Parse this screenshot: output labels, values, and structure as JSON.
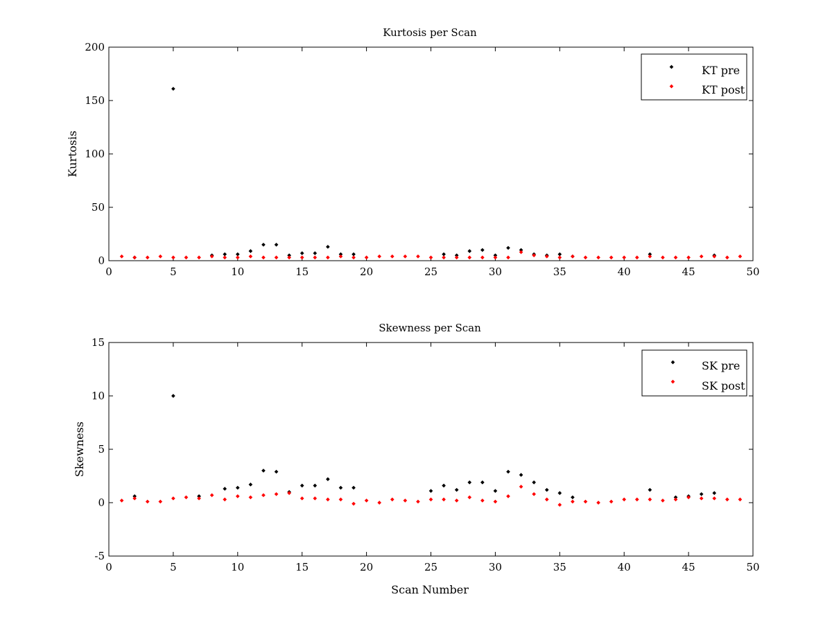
{
  "chart_data": [
    {
      "type": "scatter",
      "title": "Kurtosis per Scan",
      "xlabel": "",
      "ylabel": "Kurtosis",
      "xlim": [
        0,
        50
      ],
      "ylim": [
        0,
        200
      ],
      "xticks": [
        0,
        5,
        10,
        15,
        20,
        25,
        30,
        35,
        40,
        45,
        50
      ],
      "yticks": [
        0,
        50,
        100,
        150,
        200
      ],
      "grid": false,
      "legend": "top-right",
      "series": [
        {
          "name": "KT pre",
          "color": "#000000",
          "x": [
            2,
            5,
            8,
            9,
            10,
            11,
            12,
            13,
            14,
            15,
            16,
            17,
            18,
            19,
            26,
            27,
            28,
            29,
            30,
            31,
            32,
            33,
            34,
            35,
            36,
            42,
            47
          ],
          "y": [
            3,
            161,
            5,
            6,
            6,
            9,
            15,
            15,
            5,
            7,
            7,
            13,
            6,
            6,
            6,
            5,
            9,
            10,
            5,
            12,
            10,
            6,
            5,
            6,
            4,
            6,
            5
          ]
        },
        {
          "name": "KT post",
          "color": "#ff0000",
          "x": [
            1,
            2,
            3,
            4,
            5,
            6,
            7,
            8,
            9,
            10,
            11,
            12,
            13,
            14,
            15,
            16,
            17,
            18,
            19,
            20,
            21,
            22,
            23,
            24,
            25,
            26,
            27,
            28,
            29,
            30,
            31,
            32,
            33,
            34,
            35,
            36,
            37,
            38,
            39,
            40,
            41,
            42,
            43,
            44,
            45,
            46,
            47,
            48,
            49
          ],
          "y": [
            4,
            3,
            3,
            4,
            3,
            3,
            3,
            4,
            3,
            3,
            4,
            3,
            3,
            3,
            3,
            3,
            3,
            4,
            3,
            3,
            4,
            4,
            4,
            4,
            3,
            3,
            3,
            3,
            3,
            3,
            3,
            8,
            5,
            4,
            3,
            4,
            3,
            3,
            3,
            3,
            3,
            4,
            3,
            3,
            3,
            4,
            4,
            3,
            4
          ]
        }
      ]
    },
    {
      "type": "scatter",
      "title": "Skewness per Scan",
      "xlabel": "Scan Number",
      "ylabel": "Skewness",
      "xlim": [
        0,
        50
      ],
      "ylim": [
        -5,
        15
      ],
      "xticks": [
        0,
        5,
        10,
        15,
        20,
        25,
        30,
        35,
        40,
        45,
        50
      ],
      "yticks": [
        -5,
        0,
        5,
        10,
        15
      ],
      "grid": false,
      "legend": "top-right",
      "series": [
        {
          "name": "SK pre",
          "color": "#000000",
          "x": [
            2,
            5,
            7,
            9,
            10,
            11,
            12,
            13,
            14,
            15,
            16,
            17,
            18,
            19,
            25,
            26,
            27,
            28,
            29,
            30,
            31,
            32,
            33,
            34,
            35,
            36,
            42,
            44,
            45,
            46,
            47
          ],
          "y": [
            0.6,
            10.0,
            0.6,
            1.3,
            1.4,
            1.7,
            3.0,
            2.9,
            1.0,
            1.6,
            1.6,
            2.2,
            1.4,
            1.4,
            1.1,
            1.6,
            1.2,
            1.9,
            1.9,
            1.1,
            2.9,
            2.6,
            1.9,
            1.2,
            0.9,
            0.5,
            1.2,
            0.5,
            0.6,
            0.8,
            0.9
          ]
        },
        {
          "name": "SK post",
          "color": "#ff0000",
          "x": [
            1,
            2,
            3,
            4,
            5,
            6,
            7,
            8,
            9,
            10,
            11,
            12,
            13,
            14,
            15,
            16,
            17,
            18,
            19,
            20,
            21,
            22,
            23,
            24,
            25,
            26,
            27,
            28,
            29,
            30,
            31,
            32,
            33,
            34,
            35,
            36,
            37,
            38,
            39,
            40,
            41,
            42,
            43,
            44,
            45,
            46,
            47,
            48,
            49
          ],
          "y": [
            0.2,
            0.4,
            0.1,
            0.1,
            0.4,
            0.5,
            0.4,
            0.7,
            0.3,
            0.6,
            0.5,
            0.7,
            0.8,
            0.9,
            0.4,
            0.4,
            0.3,
            0.3,
            -0.1,
            0.2,
            0.0,
            0.3,
            0.2,
            0.1,
            0.3,
            0.3,
            0.2,
            0.5,
            0.2,
            0.1,
            0.6,
            1.5,
            0.8,
            0.3,
            -0.2,
            0.1,
            0.1,
            0.0,
            0.1,
            0.3,
            0.3,
            0.3,
            0.2,
            0.3,
            0.5,
            0.4,
            0.4,
            0.3,
            0.3
          ]
        }
      ]
    }
  ]
}
